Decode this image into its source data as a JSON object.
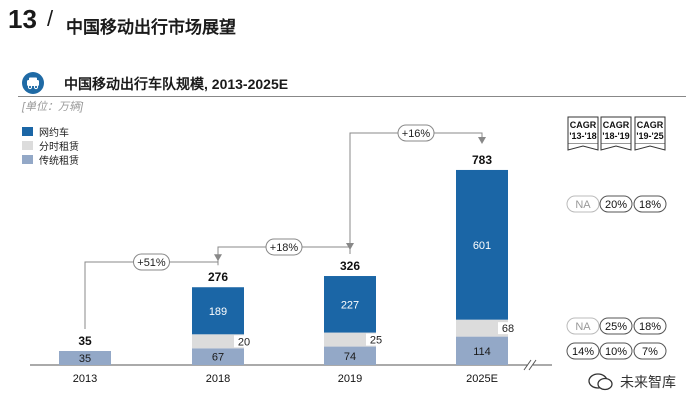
{
  "header": {
    "page_number": "13",
    "separator": "/",
    "title": "中国移动出行市场展望"
  },
  "chart_title": "中国移动出行车队规模, 2013-2025E",
  "unit_label": "[单位：万辆]",
  "legend": [
    {
      "label": "网约车",
      "color": "#1b66a6"
    },
    {
      "label": "分时租赁",
      "color": "#dcdcdc"
    },
    {
      "label": "传统租赁",
      "color": "#93a8c7"
    }
  ],
  "watermark": "未来智库",
  "chart_data": {
    "type": "bar",
    "title": "中国移动出行车队规模, 2013-2025E",
    "ylabel": "万辆",
    "categories": [
      "2013",
      "2018",
      "2019",
      "2025E"
    ],
    "series": [
      {
        "name": "传统租赁",
        "values": [
          35,
          67,
          74,
          114
        ],
        "labels": [
          "35",
          "67",
          "74",
          "114"
        ]
      },
      {
        "name": "分时租赁",
        "values": [
          0,
          20,
          25,
          68
        ],
        "labels": [
          "",
          "20",
          "25",
          "68"
        ]
      },
      {
        "name": "网约车",
        "values": [
          0,
          189,
          227,
          601
        ],
        "labels": [
          "",
          "189",
          "227",
          "601"
        ]
      }
    ],
    "totals": [
      "35",
      "276",
      "326",
      "783"
    ],
    "growth_annotations": [
      {
        "from": "2013",
        "to": "2018",
        "label": "+51%"
      },
      {
        "from": "2018",
        "to": "2019",
        "label": "+18%"
      },
      {
        "from": "2019",
        "to": "2025E",
        "label": "+16%"
      }
    ],
    "cagr_headers": [
      "CAGR '13-'18",
      "CAGR '18-'19",
      "CAGR '19-'25"
    ],
    "cagr_rows": [
      {
        "series": "网约车",
        "values": [
          "NA",
          "20%",
          "18%"
        ]
      },
      {
        "series": "分时租赁",
        "values": [
          "NA",
          "25%",
          "18%"
        ]
      },
      {
        "series": "传统租赁",
        "values": [
          "14%",
          "10%",
          "7%"
        ]
      }
    ],
    "ylim": [
      0,
      800
    ],
    "axis_break": true
  }
}
